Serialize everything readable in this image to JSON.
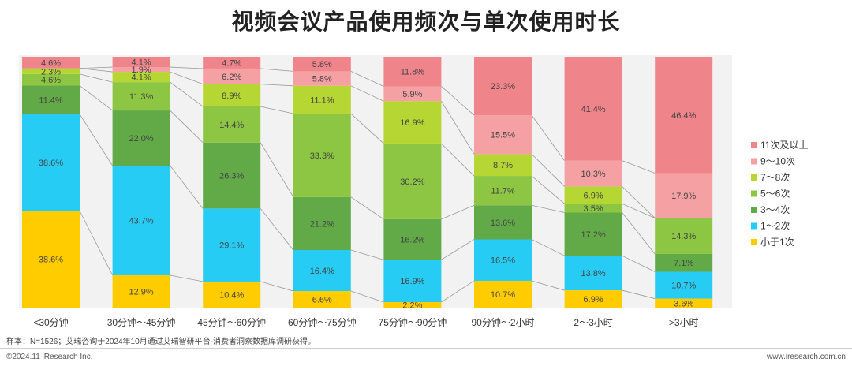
{
  "title": "视频会议产品使用频次与单次使用时长",
  "footer": {
    "note": "样本：N=1526；艾瑞咨询于2024年10月通过艾瑞智研平台-消费者洞察数据库调研获得。",
    "copyright": "©2024.11 iResearch Inc.",
    "website": "www.iresearch.com.cn"
  },
  "chart_data": {
    "type": "bar",
    "stacked": true,
    "percent_stacked": true,
    "title": "视频会议产品使用频次与单次使用时长",
    "xlabel": "",
    "ylabel": "",
    "ylim": [
      0,
      100
    ],
    "legend_position": "right",
    "connector_lines": true,
    "categories": [
      "<30分钟",
      "30分钟～45分钟",
      "45分钟～60分钟",
      "60分钟～75分钟",
      "75分钟～90分钟",
      "90分钟～2小时",
      "2～3小时",
      ">3小时"
    ],
    "series": [
      {
        "name": "小于1次",
        "color": "#FFCC00",
        "values": [
          38.6,
          12.9,
          10.4,
          6.6,
          2.2,
          10.7,
          6.9,
          3.6
        ]
      },
      {
        "name": "1～2次",
        "color": "#27CCF4",
        "values": [
          38.6,
          43.7,
          29.1,
          16.4,
          16.9,
          16.5,
          13.8,
          10.7
        ]
      },
      {
        "name": "3～4次",
        "color": "#62A948",
        "values": [
          11.4,
          22.0,
          26.3,
          21.2,
          16.2,
          13.6,
          17.2,
          7.1
        ]
      },
      {
        "name": "5～6次",
        "color": "#8DC642",
        "values": [
          4.6,
          11.3,
          14.4,
          33.3,
          30.2,
          11.7,
          3.5,
          14.3
        ]
      },
      {
        "name": "7～8次",
        "color": "#B6D733",
        "values": [
          2.3,
          4.1,
          8.9,
          11.1,
          16.9,
          8.7,
          6.9,
          0
        ]
      },
      {
        "name": "9～10次",
        "color": "#F5A0A2",
        "values": [
          0,
          1.9,
          6.2,
          5.8,
          5.9,
          15.5,
          10.3,
          17.9
        ]
      },
      {
        "name": "11次及以上",
        "color": "#F0848B",
        "values": [
          4.6,
          4.1,
          4.7,
          5.8,
          11.8,
          23.3,
          41.4,
          46.4
        ]
      }
    ],
    "data_labels": [
      [
        "38.6%",
        "38.6%",
        "11.4%",
        "4.6%",
        "2.3%",
        "",
        "4.6%"
      ],
      [
        "12.9%",
        "43.7%",
        "22.0%",
        "11.3%",
        "4.1%",
        "1.9%",
        "4.1%"
      ],
      [
        "10.4%",
        "29.1%",
        "26.3%",
        "14.4%",
        "8.9%",
        "6.2%",
        "4.7%"
      ],
      [
        "6.6%",
        "16.4%",
        "21.2%",
        "33.3%",
        "11.1%",
        "5.8%",
        "5.8%"
      ],
      [
        "2.2%",
        "16.9%",
        "16.2%",
        "30.2%",
        "16.9%",
        "5.9%",
        "11.8%"
      ],
      [
        "10.7%",
        "16.5%",
        "13.6%",
        "11.7%",
        "8.7%",
        "15.5%",
        "23.3%"
      ],
      [
        "6.9%",
        "13.8%",
        "17.2%",
        "3.5%",
        "6.9%",
        "10.3%",
        "41.4%"
      ],
      [
        "3.6%",
        "10.7%",
        "7.1%",
        "14.3%",
        "",
        "17.9%",
        "46.4%"
      ]
    ]
  }
}
